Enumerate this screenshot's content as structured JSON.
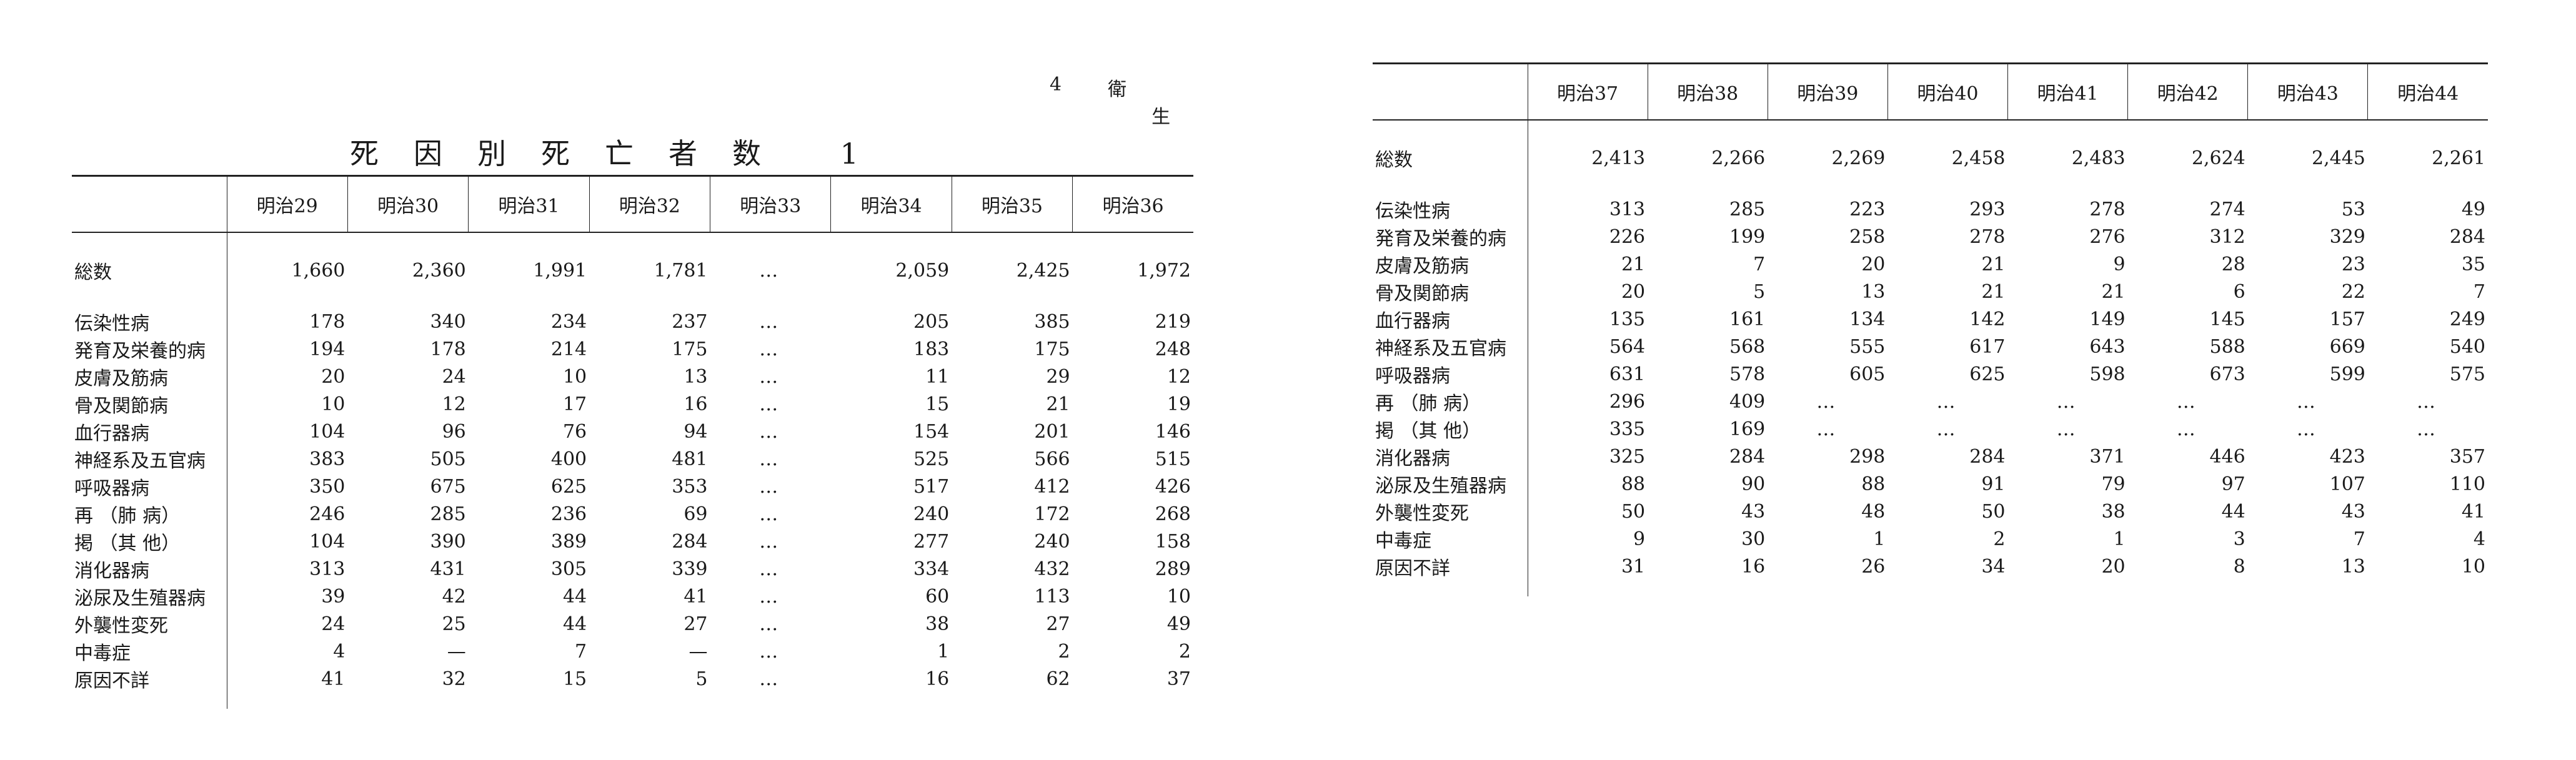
{
  "header": {
    "page_number": "4",
    "section": "衛",
    "section2": "生"
  },
  "title": "死因別死亡者数 1",
  "table_left": {
    "columns": [
      "明治29",
      "明治30",
      "明治31",
      "明治32",
      "明治33",
      "明治34",
      "明治35",
      "明治36"
    ],
    "rows": [
      {
        "label": "総数",
        "values": [
          "1,660",
          "2,360",
          "1,991",
          "1,781",
          "…",
          "2,059",
          "2,425",
          "1,972"
        ]
      },
      {
        "label": "伝染性病",
        "values": [
          "178",
          "340",
          "234",
          "237",
          "…",
          "205",
          "385",
          "219"
        ]
      },
      {
        "label": "発育及栄養的病",
        "values": [
          "194",
          "178",
          "214",
          "175",
          "…",
          "183",
          "175",
          "248"
        ]
      },
      {
        "label": "皮膚及筋病",
        "values": [
          "20",
          "24",
          "10",
          "13",
          "…",
          "11",
          "29",
          "12"
        ]
      },
      {
        "label": "骨及関節病",
        "values": [
          "10",
          "12",
          "17",
          "16",
          "…",
          "15",
          "21",
          "19"
        ]
      },
      {
        "label": "血行器病",
        "values": [
          "104",
          "96",
          "76",
          "94",
          "…",
          "154",
          "201",
          "146"
        ]
      },
      {
        "label": "神経系及五官病",
        "values": [
          "383",
          "505",
          "400",
          "481",
          "…",
          "525",
          "566",
          "515"
        ]
      },
      {
        "label": "呼吸器病",
        "values": [
          "350",
          "675",
          "625",
          "353",
          "…",
          "517",
          "412",
          "426"
        ]
      },
      {
        "label": "再 （肺 病）",
        "values": [
          "246",
          "285",
          "236",
          "69",
          "…",
          "240",
          "172",
          "268"
        ]
      },
      {
        "label": "掲 （其 他）",
        "values": [
          "104",
          "390",
          "389",
          "284",
          "…",
          "277",
          "240",
          "158"
        ]
      },
      {
        "label": "消化器病",
        "values": [
          "313",
          "431",
          "305",
          "339",
          "…",
          "334",
          "432",
          "289"
        ]
      },
      {
        "label": "泌尿及生殖器病",
        "values": [
          "39",
          "42",
          "44",
          "41",
          "…",
          "60",
          "113",
          "10"
        ]
      },
      {
        "label": "外襲性変死",
        "values": [
          "24",
          "25",
          "44",
          "27",
          "…",
          "38",
          "27",
          "49"
        ]
      },
      {
        "label": "中毒症",
        "values": [
          "4",
          "—",
          "7",
          "—",
          "…",
          "1",
          "2",
          "2"
        ]
      },
      {
        "label": "原因不詳",
        "values": [
          "41",
          "32",
          "15",
          "5",
          "…",
          "16",
          "62",
          "37"
        ]
      }
    ]
  },
  "table_right": {
    "columns": [
      "明治37",
      "明治38",
      "明治39",
      "明治40",
      "明治41",
      "明治42",
      "明治43",
      "明治44"
    ],
    "rows": [
      {
        "label": "総数",
        "values": [
          "2,413",
          "2,266",
          "2,269",
          "2,458",
          "2,483",
          "2,624",
          "2,445",
          "2,261"
        ]
      },
      {
        "label": "伝染性病",
        "values": [
          "313",
          "285",
          "223",
          "293",
          "278",
          "274",
          "53",
          "49"
        ]
      },
      {
        "label": "発育及栄養的病",
        "values": [
          "226",
          "199",
          "258",
          "278",
          "276",
          "312",
          "329",
          "284"
        ]
      },
      {
        "label": "皮膚及筋病",
        "values": [
          "21",
          "7",
          "20",
          "21",
          "9",
          "28",
          "23",
          "35"
        ]
      },
      {
        "label": "骨及関節病",
        "values": [
          "20",
          "5",
          "13",
          "21",
          "21",
          "6",
          "22",
          "7"
        ]
      },
      {
        "label": "血行器病",
        "values": [
          "135",
          "161",
          "134",
          "142",
          "149",
          "145",
          "157",
          "249"
        ]
      },
      {
        "label": "神経系及五官病",
        "values": [
          "564",
          "568",
          "555",
          "617",
          "643",
          "588",
          "669",
          "540"
        ]
      },
      {
        "label": "呼吸器病",
        "values": [
          "631",
          "578",
          "605",
          "625",
          "598",
          "673",
          "599",
          "575"
        ]
      },
      {
        "label": "再 （肺 病）",
        "values": [
          "296",
          "409",
          "…",
          "…",
          "…",
          "…",
          "…",
          "…"
        ]
      },
      {
        "label": "掲 （其 他）",
        "values": [
          "335",
          "169",
          "…",
          "…",
          "…",
          "…",
          "…",
          "…"
        ]
      },
      {
        "label": "消化器病",
        "values": [
          "325",
          "284",
          "298",
          "284",
          "371",
          "446",
          "423",
          "357"
        ]
      },
      {
        "label": "泌尿及生殖器病",
        "values": [
          "88",
          "90",
          "88",
          "91",
          "79",
          "97",
          "107",
          "110"
        ]
      },
      {
        "label": "外襲性変死",
        "values": [
          "50",
          "43",
          "48",
          "50",
          "38",
          "44",
          "43",
          "41"
        ]
      },
      {
        "label": "中毒症",
        "values": [
          "9",
          "30",
          "1",
          "2",
          "1",
          "3",
          "7",
          "4"
        ]
      },
      {
        "label": "原因不詳",
        "values": [
          "31",
          "16",
          "26",
          "34",
          "20",
          "8",
          "13",
          "10"
        ]
      }
    ]
  }
}
